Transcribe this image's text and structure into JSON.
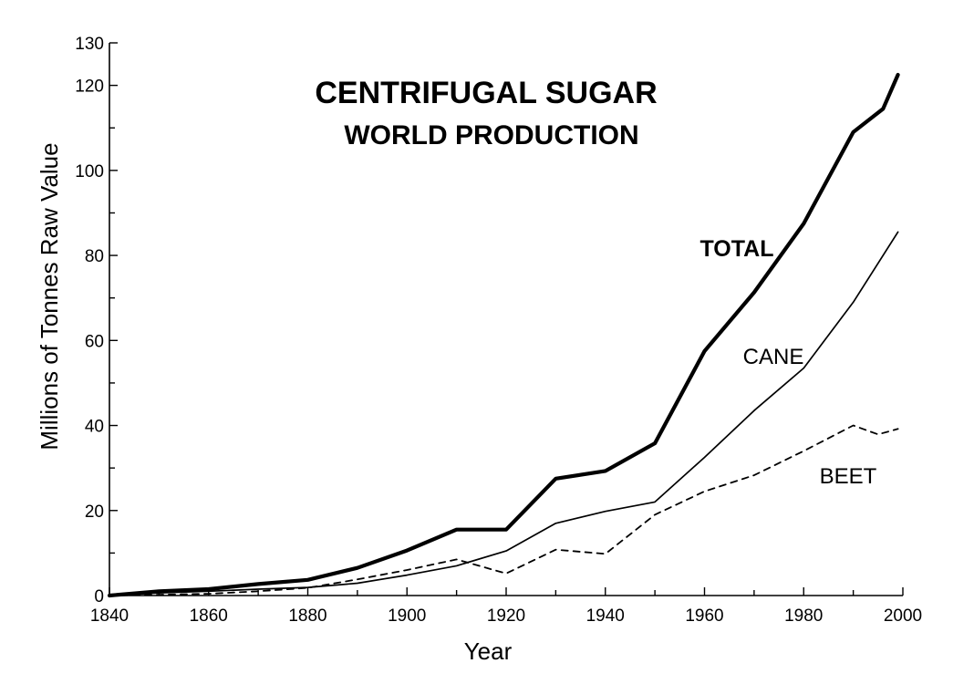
{
  "chart_data": {
    "type": "line",
    "title": "CENTRIFUGAL SUGAR",
    "subtitle": "WORLD PRODUCTION",
    "xlabel": "Year",
    "ylabel": "Millions of Tonnes Raw Value",
    "xlim": [
      1840,
      2000
    ],
    "ylim": [
      0,
      130
    ],
    "xticks": [
      1840,
      1860,
      1880,
      1900,
      1920,
      1940,
      1960,
      1980,
      2000
    ],
    "yticks": [
      0,
      20,
      40,
      60,
      80,
      100,
      120,
      130
    ],
    "grid": false,
    "legend": "none",
    "series": [
      {
        "name": "TOTAL",
        "style": "thick-solid",
        "x": [
          1840,
          1850,
          1860,
          1870,
          1880,
          1890,
          1900,
          1910,
          1920,
          1930,
          1940,
          1950,
          1960,
          1970,
          1980,
          1990,
          1996,
          1999
        ],
        "y": [
          0,
          1,
          1.5,
          2.7,
          3.7,
          6.5,
          10.6,
          15.5,
          15.5,
          27.5,
          29.3,
          35.8,
          57.5,
          71.3,
          87.5,
          109,
          114.5,
          122.5
        ]
      },
      {
        "name": "CANE",
        "style": "thin-solid",
        "x": [
          1840,
          1850,
          1860,
          1870,
          1880,
          1890,
          1900,
          1910,
          1920,
          1930,
          1940,
          1950,
          1960,
          1970,
          1980,
          1990,
          1999
        ],
        "y": [
          0,
          0.6,
          1,
          1.5,
          1.9,
          2.9,
          4.8,
          7,
          10.5,
          17,
          19.8,
          22,
          32.5,
          43.5,
          53.5,
          69,
          85.5
        ]
      },
      {
        "name": "BEET",
        "style": "dashed",
        "x": [
          1840,
          1850,
          1860,
          1870,
          1880,
          1890,
          1900,
          1910,
          1920,
          1930,
          1940,
          1950,
          1960,
          1970,
          1980,
          1990,
          1995,
          1999
        ],
        "y": [
          0,
          0.2,
          0.4,
          1,
          1.8,
          3.8,
          6,
          8.5,
          5.2,
          10.8,
          9.8,
          19,
          24.5,
          28.3,
          34,
          40,
          37.9,
          39.2
        ]
      }
    ],
    "labels": {
      "total": "TOTAL",
      "cane": "CANE",
      "beet": "BEET"
    }
  }
}
